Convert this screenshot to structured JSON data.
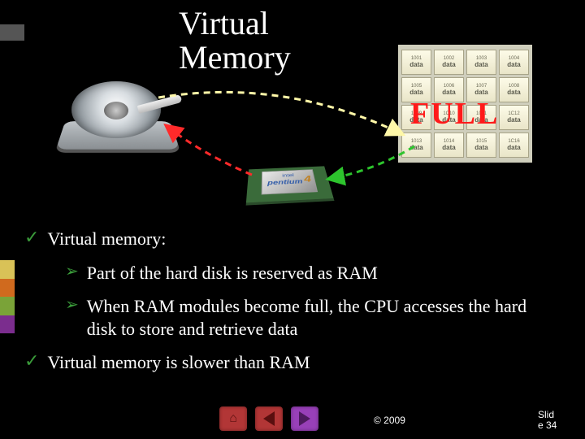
{
  "title_line1": "Virtual",
  "title_line2": "Memory",
  "full_label": "FULL",
  "cpu_brand_small": "intel",
  "cpu_brand": "pentium",
  "cpu_model": "4",
  "ram_cells": [
    {
      "addr": "1001",
      "val": "data"
    },
    {
      "addr": "1002",
      "val": "data"
    },
    {
      "addr": "1003",
      "val": "data"
    },
    {
      "addr": "1004",
      "val": "data"
    },
    {
      "addr": "1005",
      "val": "data"
    },
    {
      "addr": "1006",
      "val": "data"
    },
    {
      "addr": "1007",
      "val": "data"
    },
    {
      "addr": "1008",
      "val": "data"
    },
    {
      "addr": "1009",
      "val": "data"
    },
    {
      "addr": "1C10",
      "val": "data"
    },
    {
      "addr": "1011",
      "val": "data"
    },
    {
      "addr": "1C12",
      "val": "data"
    },
    {
      "addr": "1013",
      "val": "data"
    },
    {
      "addr": "1014",
      "val": "data"
    },
    {
      "addr": "1015",
      "val": "data"
    },
    {
      "addr": "1C16",
      "val": "data"
    }
  ],
  "bullets": {
    "b1": "Virtual memory:",
    "b1a": "Part of the hard disk is reserved as RAM",
    "b1b": "When RAM modules become full, the CPU accesses the hard disk to store and retrieve data",
    "b2": "Virtual memory is slower than RAM"
  },
  "copyright": "© 2009",
  "slide_label": "Slid",
  "slide_label2": "e 34",
  "colors": {
    "accent_green": "#3a9b3a",
    "full_red": "#ff1a1a",
    "arrow_ram_to_cpu": "#2dc42d",
    "arrow_cpu_to_hdd": "#ff2a2a",
    "arrow_hdd_to_ram": "#fff8a8",
    "sidebar": [
      "#d9c257",
      "#d06a1e",
      "#7aa338",
      "#7b2d8e"
    ]
  }
}
